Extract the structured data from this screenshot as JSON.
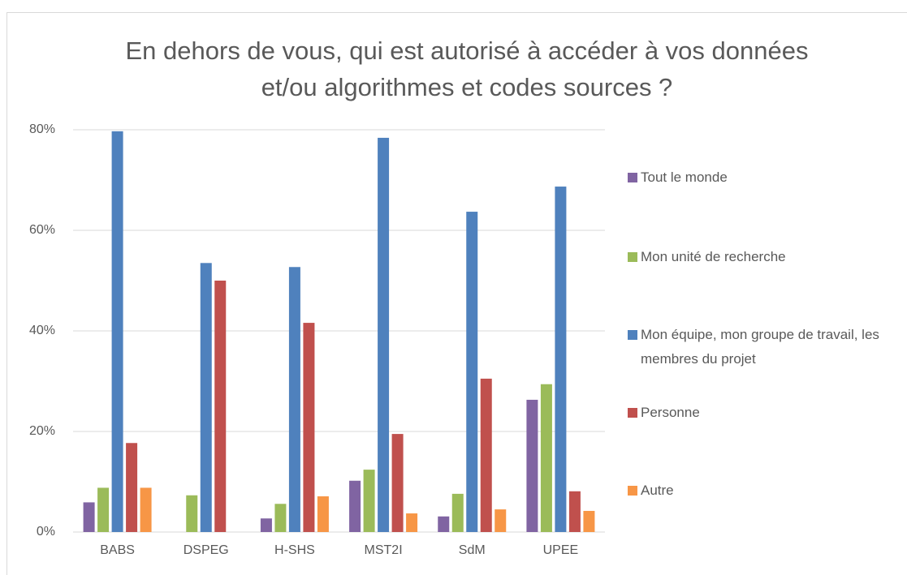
{
  "chart_data": {
    "type": "bar",
    "title": "En dehors de vous, qui est autorisé à accéder à vos données et/ou algorithmes et codes sources ?",
    "categories": [
      "BABS",
      "DSPEG",
      "H-SHS",
      "MST2I",
      "SdM",
      "UPEE"
    ],
    "series": [
      {
        "name": "Tout le monde",
        "color": "#8064a2",
        "values": [
          5.9,
          0,
          2.7,
          10.2,
          3.1,
          26.3
        ]
      },
      {
        "name": "Mon unité de recherche",
        "color": "#9bbb59",
        "values": [
          8.8,
          7.3,
          5.6,
          12.4,
          7.6,
          29.4
        ]
      },
      {
        "name": "Mon équipe, mon groupe de travail, les membres du projet",
        "color": "#4f81bd",
        "values": [
          79.7,
          53.5,
          52.7,
          78.4,
          63.7,
          68.7
        ]
      },
      {
        "name": "Personne",
        "color": "#c0504d",
        "values": [
          17.7,
          50,
          41.6,
          19.5,
          30.5,
          8.1
        ]
      },
      {
        "name": "Autre",
        "color": "#f79646",
        "values": [
          8.8,
          0,
          7.1,
          3.7,
          4.5,
          4.2
        ]
      }
    ],
    "ylim": [
      0,
      80
    ],
    "yticks": [
      {
        "value": 0,
        "label": "0%"
      },
      {
        "value": 20,
        "label": "20%"
      },
      {
        "value": 40,
        "label": "40%"
      },
      {
        "value": 60,
        "label": "60%"
      },
      {
        "value": 80,
        "label": "80%"
      }
    ],
    "grid": true,
    "legend": "right"
  }
}
